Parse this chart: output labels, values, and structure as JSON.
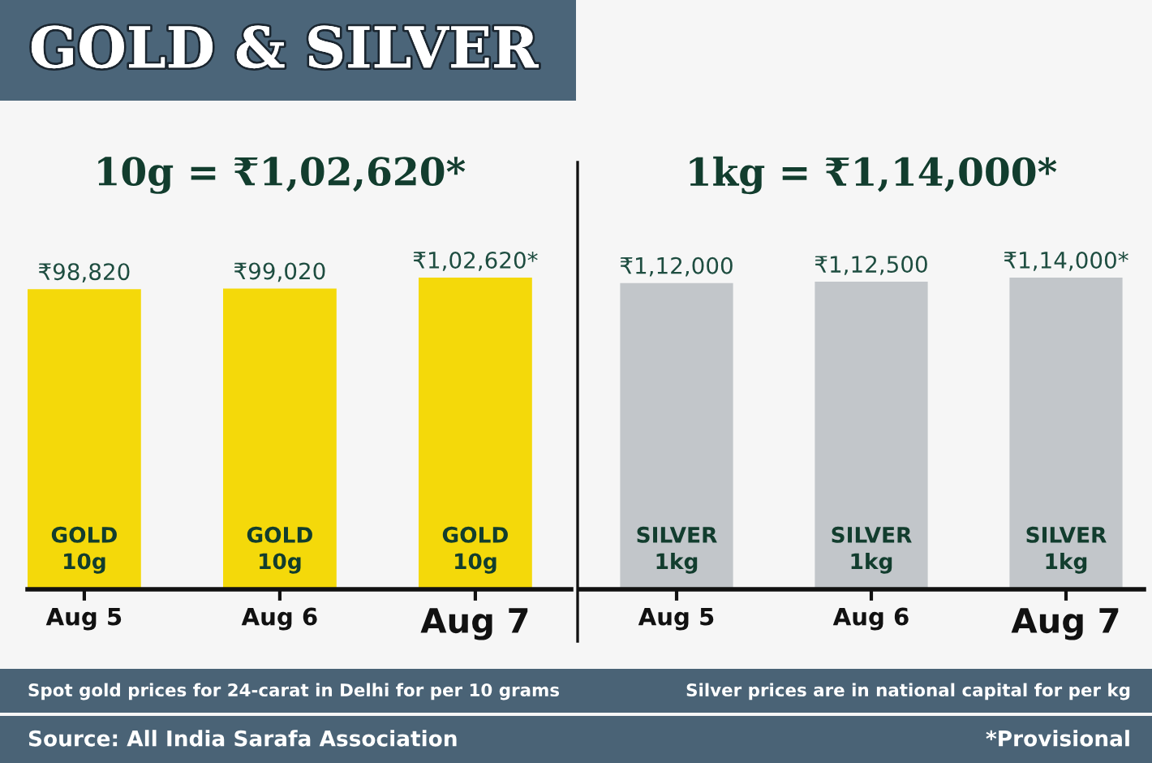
{
  "chart_data": [
    {
      "type": "bar",
      "title": "GOLD & SILVER",
      "subtitle": "10g = ₹1,02,620*",
      "categories": [
        "Aug 5",
        "Aug 6",
        "Aug 7"
      ],
      "values": [
        98820,
        99020,
        102620
      ],
      "value_labels": [
        "₹98,820",
        "₹99,020",
        "₹1,02,620*"
      ],
      "color": "#f4d90a",
      "annotations": [
        "GOLD\n10g",
        "GOLD\n10g",
        "GOLD\n10g",
        "Spot gold prices for 24-carat in Delhi for per 10 grams",
        "Source: All India Sarafa Association"
      ]
    },
    {
      "type": "bar",
      "subtitle": "1kg = ₹1,14,000*",
      "categories": [
        "Aug 5",
        "Aug 6",
        "Aug 7"
      ],
      "values": [
        112000,
        112500,
        114000
      ],
      "value_labels": [
        "₹1,12,000",
        "₹1,12,500",
        "₹1,14,000*"
      ],
      "color": "#c2c6ca",
      "annotations": [
        "SILVER\n1kg",
        "SILVER\n1kg",
        "SILVER\n1kg",
        "Silver prices are in national capital for per kg",
        "*Provisional"
      ]
    }
  ]
}
